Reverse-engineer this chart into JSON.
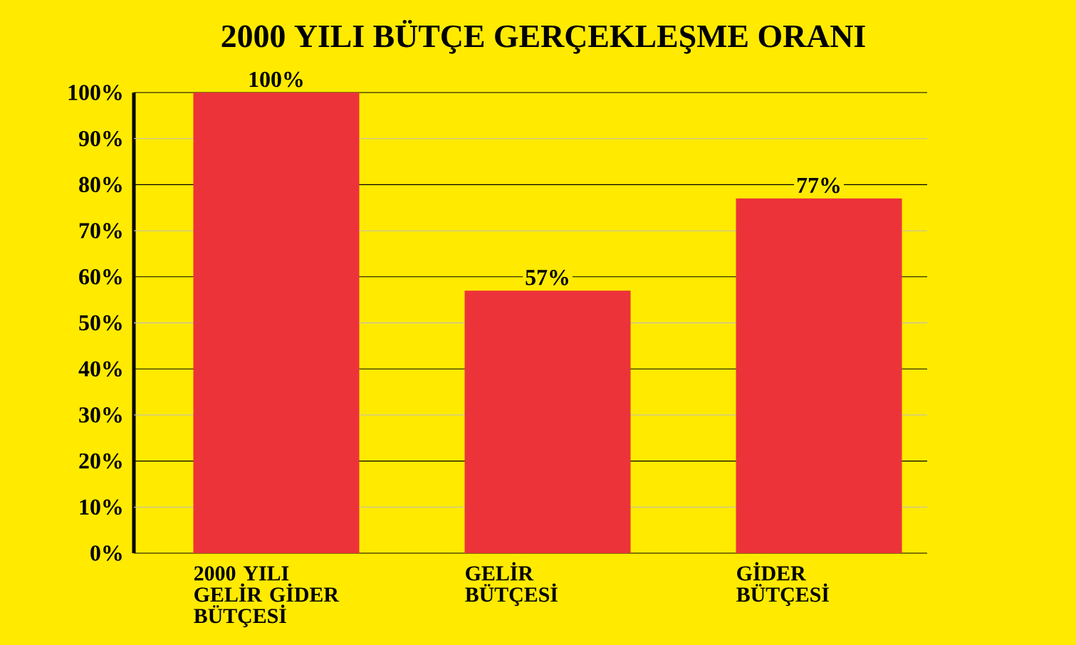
{
  "chart_data": {
    "type": "bar",
    "title": "2000 YILI BÜTÇE GERÇEKLEŞME ORANI",
    "categories": [
      "2000 YILI GELİR GİDER BÜTÇESİ",
      "GELİR BÜTÇESİ",
      "GİDER BÜTÇESİ"
    ],
    "values": [
      100,
      57,
      77
    ],
    "color": "#ec333a",
    "value_labels": [
      "100%",
      "57%",
      "77%"
    ],
    "ylim": [
      0,
      100
    ],
    "yticks": [
      {
        "value": 0,
        "label": "0%"
      },
      {
        "value": 10,
        "label": "10%"
      },
      {
        "value": 20,
        "label": "20%"
      },
      {
        "value": 30,
        "label": "30%"
      },
      {
        "value": 40,
        "label": "40%"
      },
      {
        "value": 50,
        "label": "50%"
      },
      {
        "value": 60,
        "label": "60%"
      },
      {
        "value": 70,
        "label": "70%"
      },
      {
        "value": 80,
        "label": "80%"
      },
      {
        "value": 90,
        "label": "90%"
      },
      {
        "value": 100,
        "label": "100%"
      }
    ],
    "grid": "y"
  }
}
